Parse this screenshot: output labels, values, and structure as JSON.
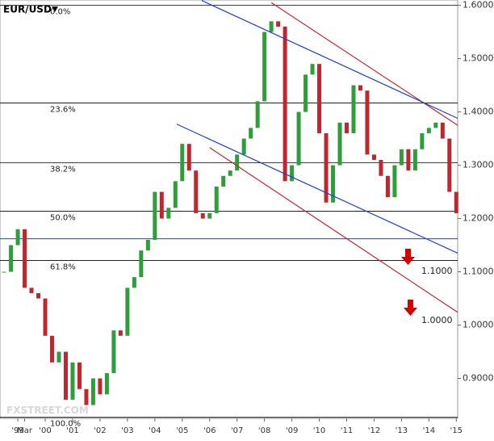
{
  "chart_data": {
    "type": "candlestick",
    "title": "EUR/USD",
    "watermark": "FXSTREET.COM",
    "up_color": "#2e9e3a",
    "down_color": "#c0262d",
    "xlim": [
      1998.35,
      2015.05
    ],
    "ylim": [
      0.825,
      1.61
    ],
    "yticks": [
      {
        "value": 1.6,
        "label": "1.6000"
      },
      {
        "value": 1.5,
        "label": "1.5000"
      },
      {
        "value": 1.4,
        "label": "1.4000"
      },
      {
        "value": 1.3,
        "label": "1.3000"
      },
      {
        "value": 1.2,
        "label": "1.2000"
      },
      {
        "value": 1.1,
        "label": "1.1000"
      },
      {
        "value": 1.0,
        "label": "1.0000"
      },
      {
        "value": 0.9,
        "label": "0.9000"
      }
    ],
    "xticks": [
      {
        "value": 1999,
        "label": "'99"
      },
      {
        "value": 1999.25,
        "label": "Mar"
      },
      {
        "value": 2000,
        "label": "'00"
      },
      {
        "value": 2001,
        "label": "'01"
      },
      {
        "value": 2002,
        "label": "'02"
      },
      {
        "value": 2003,
        "label": "'03"
      },
      {
        "value": 2004,
        "label": "'04"
      },
      {
        "value": 2005,
        "label": "'05"
      },
      {
        "value": 2006,
        "label": "'06"
      },
      {
        "value": 2007,
        "label": "'07"
      },
      {
        "value": 2008,
        "label": "'08"
      },
      {
        "value": 2009,
        "label": "'09"
      },
      {
        "value": 2010,
        "label": "'10"
      },
      {
        "value": 2011,
        "label": "'11"
      },
      {
        "value": 2012,
        "label": "'12"
      },
      {
        "value": 2013,
        "label": "'13"
      },
      {
        "value": 2014,
        "label": "'14"
      },
      {
        "value": 2015,
        "label": "'15"
      }
    ],
    "x": [
      1998.5,
      1998.75,
      1999,
      1999.25,
      1999.5,
      1999.75,
      2000,
      2000.25,
      2000.5,
      2000.75,
      2001,
      2001.25,
      2001.5,
      2001.75,
      2002,
      2002.25,
      2002.5,
      2002.75,
      2003,
      2003.25,
      2003.5,
      2003.75,
      2004,
      2004.25,
      2004.5,
      2004.75,
      2005,
      2005.25,
      2005.5,
      2005.75,
      2006,
      2006.25,
      2006.5,
      2006.75,
      2007,
      2007.25,
      2007.5,
      2007.75,
      2008,
      2008.25,
      2008.5,
      2008.75,
      2009,
      2009.25,
      2009.5,
      2009.75,
      2010,
      2010.25,
      2010.5,
      2010.75,
      2011,
      2011.25,
      2011.5,
      2011.75,
      2012,
      2012.25,
      2012.5,
      2012.75,
      2013,
      2013.25,
      2013.5,
      2013.75,
      2014,
      2014.25,
      2014.5,
      2014.75,
      2015
    ],
    "series": [
      {
        "name": "EUR/USD",
        "values": [
          1.1,
          1.15,
          1.18,
          1.07,
          1.06,
          1.05,
          0.98,
          0.93,
          0.95,
          0.86,
          0.93,
          0.88,
          0.85,
          0.9,
          0.87,
          0.91,
          0.99,
          0.98,
          1.07,
          1.09,
          1.14,
          1.16,
          1.25,
          1.2,
          1.22,
          1.27,
          1.34,
          1.29,
          1.21,
          1.2,
          1.21,
          1.26,
          1.28,
          1.29,
          1.32,
          1.35,
          1.37,
          1.42,
          1.55,
          1.57,
          1.56,
          1.27,
          1.3,
          1.4,
          1.47,
          1.49,
          1.36,
          1.23,
          1.3,
          1.38,
          1.36,
          1.45,
          1.44,
          1.32,
          1.31,
          1.28,
          1.24,
          1.3,
          1.33,
          1.29,
          1.33,
          1.36,
          1.37,
          1.38,
          1.35,
          1.25,
          1.21
        ]
      }
    ],
    "levels": [
      {
        "label": "0.0%",
        "value": 1.6,
        "color": "#000000"
      },
      {
        "label": "23.6%",
        "value": 1.4167,
        "color": "#000000"
      },
      {
        "label": "38.2%",
        "value": 1.3045,
        "color": "#000000"
      },
      {
        "label": "50.0%",
        "value": 1.2136,
        "color": "#000000"
      },
      {
        "label": "61.8%",
        "value": 1.1212,
        "color": "#000000"
      },
      {
        "label": "100.0%",
        "value": 0.827,
        "color": "#000000"
      }
    ],
    "support": {
      "value": 1.162,
      "color": "#1f3fd8"
    },
    "trend_lines": [
      {
        "color": "#c0262d",
        "points": [
          [
            2008.25,
            1.605
          ],
          [
            2015.05,
            1.375
          ]
        ]
      },
      {
        "color": "#1f3fd8",
        "points": [
          [
            2005.71,
            1.609
          ],
          [
            2015.05,
            1.388
          ]
        ]
      },
      {
        "color": "#1f3fd8",
        "points": [
          [
            2004.8,
            1.377
          ],
          [
            2015.05,
            1.135
          ]
        ]
      },
      {
        "color": "#c0262d",
        "points": [
          [
            2006.0,
            1.333
          ],
          [
            2015.05,
            1.024
          ]
        ]
      }
    ],
    "annotations": [
      "1.1000",
      "1.0000"
    ]
  }
}
